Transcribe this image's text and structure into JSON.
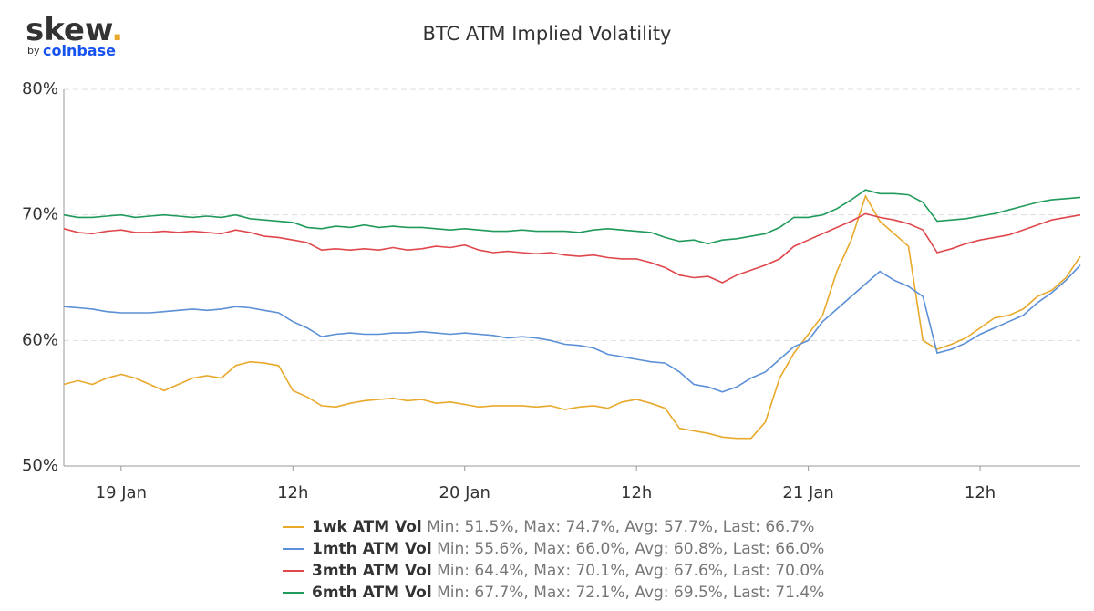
{
  "brand": "skew",
  "brand_dot": ".",
  "byline_by": "by",
  "byline_brand": "coinbase",
  "chart_data": {
    "type": "line",
    "title": "BTC ATM Implied Volatility",
    "categories": [
      null,
      null,
      null,
      null,
      "19 Jan",
      null,
      null,
      null,
      null,
      null,
      null,
      null,
      null,
      null,
      null,
      null,
      "12h",
      null,
      null,
      null,
      null,
      null,
      null,
      null,
      null,
      null,
      null,
      null,
      "20 Jan",
      null,
      null,
      null,
      null,
      null,
      null,
      null,
      null,
      null,
      null,
      null,
      "12h",
      null,
      null,
      null,
      null,
      null,
      null,
      null,
      null,
      null,
      null,
      null,
      "21 Jan",
      null,
      null,
      null,
      null,
      null,
      null,
      null,
      null,
      null,
      null,
      null,
      "12h",
      null,
      null,
      null,
      null,
      null,
      null,
      null
    ],
    "ylim": [
      50,
      80
    ],
    "yticks": [
      {
        "value": 50,
        "label": "50%"
      },
      {
        "value": 60,
        "label": "60%"
      },
      {
        "value": 70,
        "label": "70%"
      },
      {
        "value": 80,
        "label": "80%"
      }
    ],
    "grid": true,
    "series": [
      {
        "name": "1wk ATM Vol",
        "summary": "Min: 51.5%, Max: 74.7%, Avg: 57.7%, Last: 66.7%",
        "color": "#e8a92c",
        "values": [
          56.5,
          56.8,
          56.5,
          57.0,
          57.3,
          57.0,
          56.5,
          56.0,
          56.5,
          57.0,
          57.2,
          57.0,
          58.0,
          58.3,
          58.2,
          58.0,
          56.0,
          55.5,
          54.8,
          54.7,
          55.0,
          55.2,
          55.3,
          55.4,
          55.2,
          55.3,
          55.0,
          55.1,
          54.9,
          54.7,
          54.8,
          54.8,
          54.8,
          54.7,
          54.8,
          54.5,
          54.7,
          54.8,
          54.6,
          55.1,
          55.3,
          55.0,
          54.6,
          53.0,
          52.8,
          52.6,
          52.3,
          52.2,
          52.2,
          53.5,
          57.0,
          59.0,
          60.5,
          62.0,
          65.5,
          68.0,
          71.5,
          69.5,
          68.5,
          67.5,
          60.0,
          59.3,
          59.7,
          60.2,
          61.0,
          61.8,
          62.0,
          62.5,
          63.5,
          64.0,
          65.0,
          66.7
        ]
      },
      {
        "name": "1mth ATM Vol",
        "summary": "Min: 55.6%, Max: 66.0%, Avg: 60.8%, Last: 66.0%",
        "color": "#5b8fd6",
        "values": [
          62.7,
          62.6,
          62.5,
          62.3,
          62.2,
          62.2,
          62.2,
          62.3,
          62.4,
          62.5,
          62.4,
          62.5,
          62.7,
          62.6,
          62.4,
          62.2,
          61.5,
          61.0,
          60.3,
          60.5,
          60.6,
          60.5,
          60.5,
          60.6,
          60.6,
          60.7,
          60.6,
          60.5,
          60.6,
          60.5,
          60.4,
          60.2,
          60.3,
          60.2,
          60.0,
          59.7,
          59.6,
          59.4,
          58.9,
          58.7,
          58.5,
          58.3,
          58.2,
          57.5,
          56.5,
          56.3,
          55.9,
          56.3,
          57.0,
          57.5,
          58.5,
          59.5,
          60.0,
          61.5,
          62.5,
          63.5,
          64.5,
          65.5,
          64.8,
          64.3,
          63.5,
          59.0,
          59.3,
          59.8,
          60.5,
          61.0,
          61.5,
          62.0,
          63.0,
          63.8,
          64.8,
          66.0
        ]
      },
      {
        "name": "3mth ATM Vol",
        "summary": "Min: 64.4%, Max: 70.1%, Avg: 67.6%, Last: 70.0%",
        "color": "#e0474c",
        "values": [
          68.9,
          68.6,
          68.5,
          68.7,
          68.8,
          68.6,
          68.6,
          68.7,
          68.6,
          68.7,
          68.6,
          68.5,
          68.8,
          68.6,
          68.3,
          68.2,
          68.0,
          67.8,
          67.2,
          67.3,
          67.2,
          67.3,
          67.2,
          67.4,
          67.2,
          67.3,
          67.5,
          67.4,
          67.6,
          67.2,
          67.0,
          67.1,
          67.0,
          66.9,
          67.0,
          66.8,
          66.7,
          66.8,
          66.6,
          66.5,
          66.5,
          66.2,
          65.8,
          65.2,
          65.0,
          65.1,
          64.6,
          65.2,
          65.6,
          66.0,
          66.5,
          67.5,
          68.0,
          68.5,
          69.0,
          69.5,
          70.1,
          69.8,
          69.6,
          69.3,
          68.8,
          67.0,
          67.3,
          67.7,
          68.0,
          68.2,
          68.4,
          68.8,
          69.2,
          69.6,
          69.8,
          70.0
        ]
      },
      {
        "name": "6mth ATM Vol",
        "summary": "Min: 67.7%, Max: 72.1%, Avg: 69.5%, Last: 71.4%",
        "color": "#1f9a5a",
        "values": [
          70.0,
          69.8,
          69.8,
          69.9,
          70.0,
          69.8,
          69.9,
          70.0,
          69.9,
          69.8,
          69.9,
          69.8,
          70.0,
          69.7,
          69.6,
          69.5,
          69.4,
          69.0,
          68.9,
          69.1,
          69.0,
          69.2,
          69.0,
          69.1,
          69.0,
          69.0,
          68.9,
          68.8,
          68.9,
          68.8,
          68.7,
          68.7,
          68.8,
          68.7,
          68.7,
          68.7,
          68.6,
          68.8,
          68.9,
          68.8,
          68.7,
          68.6,
          68.2,
          67.9,
          68.0,
          67.7,
          68.0,
          68.1,
          68.3,
          68.5,
          69.0,
          69.8,
          69.8,
          70.0,
          70.5,
          71.2,
          72.0,
          71.7,
          71.7,
          71.6,
          71.0,
          69.5,
          69.6,
          69.7,
          69.9,
          70.1,
          70.4,
          70.7,
          71.0,
          71.2,
          71.3,
          71.4
        ]
      }
    ]
  }
}
